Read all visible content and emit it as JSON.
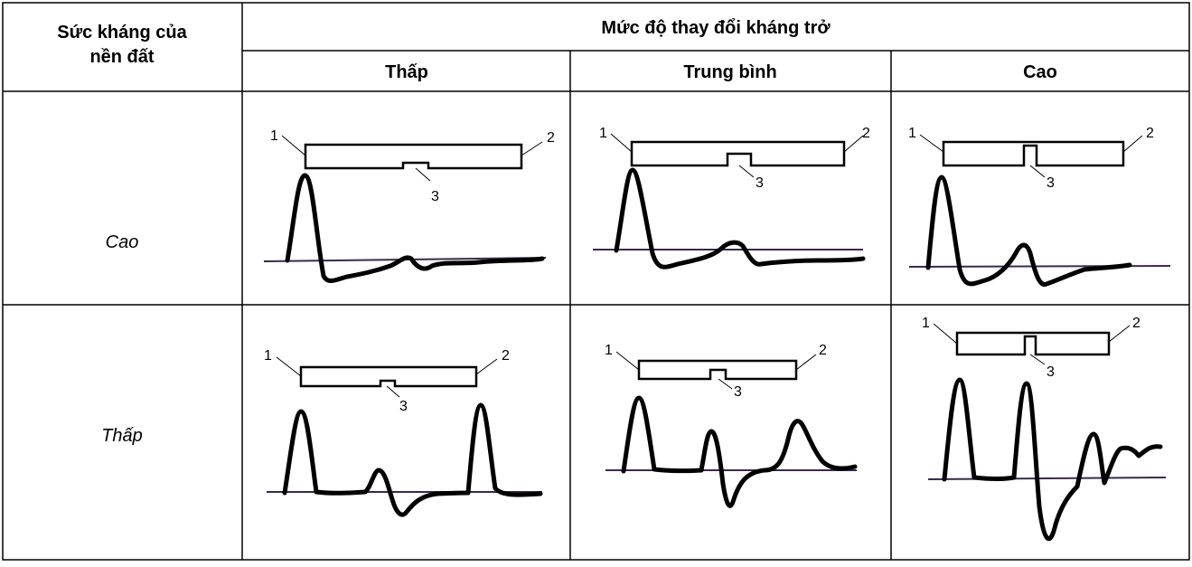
{
  "table": {
    "header_row_label": "Sức kháng của\nnền đất",
    "header_group": "Mức độ thay đổi kháng trở",
    "columns": [
      "Thấp",
      "Trung bình",
      "Cao"
    ],
    "rows": [
      "Cao",
      "Thấp"
    ]
  },
  "diagram_labels": {
    "label_1": "1",
    "label_2": "2",
    "label_3": "3"
  }
}
